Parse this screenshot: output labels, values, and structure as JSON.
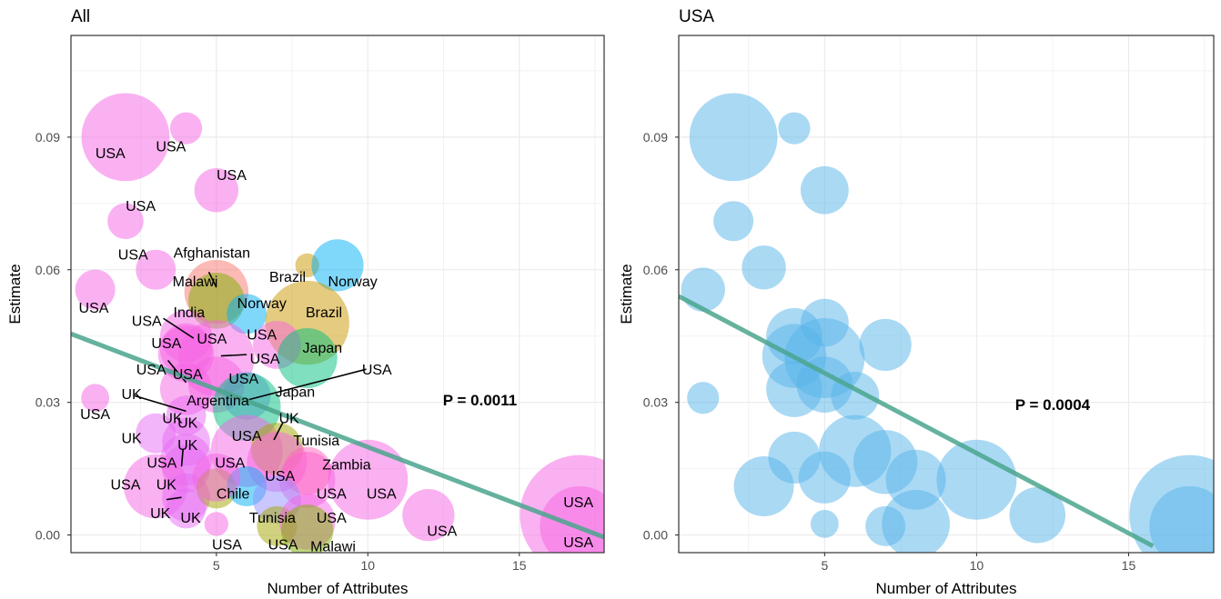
{
  "chart_data": [
    {
      "type": "scatter",
      "title": "All",
      "xlabel": "Number of Attributes",
      "ylabel": "Estimate",
      "xlim": [
        0.2,
        17.8
      ],
      "ylim": [
        -0.004,
        0.113
      ],
      "xticks": [
        5,
        10,
        15
      ],
      "yticks": [
        0.0,
        0.03,
        0.06,
        0.09
      ],
      "ytick_labels": [
        "0.00",
        "0.03",
        "0.06",
        "0.09"
      ],
      "annotation": "P = 0.0011",
      "annotation_pos": [
        13.7,
        0.0305
      ],
      "trend": {
        "x": [
          0.2,
          17.8
        ],
        "y": [
          0.0455,
          -0.0005
        ],
        "color": "#4aa58d"
      },
      "colors": {
        "USA": "#f564e3",
        "UK": "#e76bf3",
        "Afghanistan": "#f8766d",
        "Malawi": "#7cae00",
        "Brazil": "#c99800",
        "Norway": "#00b0f6",
        "India": "#f564e3",
        "Japan": "#00bf7d",
        "Argentina": "#9590ff",
        "Tunisia": "#a3a500",
        "Zambia": "#ff62bc",
        "Chile": "#a3a500"
      },
      "points": [
        {
          "country": "USA",
          "x": 2,
          "y": 0.09,
          "size": 2.2
        },
        {
          "country": "USA",
          "x": 4,
          "y": 0.092,
          "size": 0.8
        },
        {
          "country": "USA",
          "x": 5,
          "y": 0.078,
          "size": 1.1
        },
        {
          "country": "USA",
          "x": 2,
          "y": 0.071,
          "size": 0.9
        },
        {
          "country": "USA",
          "x": 3,
          "y": 0.06,
          "size": 1.0
        },
        {
          "country": "USA",
          "x": 1,
          "y": 0.0555,
          "size": 1.0
        },
        {
          "country": "Afghanistan",
          "x": 5,
          "y": 0.055,
          "size": 1.6
        },
        {
          "country": "Malawi",
          "x": 5,
          "y": 0.053,
          "size": 1.4
        },
        {
          "country": "Brazil",
          "x": 8,
          "y": 0.061,
          "size": 0.6
        },
        {
          "country": "Norway",
          "x": 9,
          "y": 0.061,
          "size": 1.3
        },
        {
          "country": "Norway",
          "x": 6,
          "y": 0.05,
          "size": 1.0
        },
        {
          "country": "Brazil",
          "x": 8,
          "y": 0.048,
          "size": 2.1
        },
        {
          "country": "India",
          "x": 4,
          "y": 0.045,
          "size": 1.3
        },
        {
          "country": "USA",
          "x": 4,
          "y": 0.042,
          "size": 1.3
        },
        {
          "country": "USA",
          "x": 5,
          "y": 0.04,
          "size": 1.9
        },
        {
          "country": "USA",
          "x": 4,
          "y": 0.041,
          "size": 1.4
        },
        {
          "country": "USA",
          "x": 7,
          "y": 0.043,
          "size": 1.2
        },
        {
          "country": "Japan",
          "x": 8,
          "y": 0.04,
          "size": 1.5
        },
        {
          "country": "USA",
          "x": 5,
          "y": 0.034,
          "size": 1.4
        },
        {
          "country": "USA",
          "x": 4,
          "y": 0.033,
          "size": 1.3
        },
        {
          "country": "USA",
          "x": 1,
          "y": 0.031,
          "size": 0.7
        },
        {
          "country": "Argentina",
          "x": 6,
          "y": 0.0315,
          "size": 1.2
        },
        {
          "country": "Japan",
          "x": 6,
          "y": 0.029,
          "size": 1.7
        },
        {
          "country": "UK",
          "x": 4,
          "y": 0.027,
          "size": 1.0
        },
        {
          "country": "UK",
          "x": 3,
          "y": 0.023,
          "size": 1.0
        },
        {
          "country": "UK",
          "x": 4,
          "y": 0.021,
          "size": 1.2
        },
        {
          "country": "UK",
          "x": 4,
          "y": 0.017,
          "size": 1.3
        },
        {
          "country": "USA",
          "x": 6,
          "y": 0.019,
          "size": 1.8
        },
        {
          "country": "Tunisia",
          "x": 7,
          "y": 0.0195,
          "size": 1.3
        },
        {
          "country": "UK",
          "x": 4,
          "y": 0.015,
          "size": 1.2
        },
        {
          "country": "USA",
          "x": 7,
          "y": 0.0165,
          "size": 1.5
        },
        {
          "country": "USA",
          "x": 8,
          "y": 0.0125,
          "size": 1.4
        },
        {
          "country": "Zambia",
          "x": 8,
          "y": 0.0145,
          "size": 1.2
        },
        {
          "country": "USA",
          "x": 10,
          "y": 0.0125,
          "size": 2.0
        },
        {
          "country": "USA",
          "x": 3,
          "y": 0.011,
          "size": 1.6
        },
        {
          "country": "UK",
          "x": 4,
          "y": 0.0085,
          "size": 1.2
        },
        {
          "country": "Chile",
          "x": 5,
          "y": 0.0105,
          "size": 1.0
        },
        {
          "country": "Norway",
          "x": 6,
          "y": 0.011,
          "size": 1.0
        },
        {
          "country": "USA",
          "x": 5,
          "y": 0.013,
          "size": 1.2
        },
        {
          "country": "Argentina",
          "x": 7,
          "y": 0.008,
          "size": 1.2
        },
        {
          "country": "UK",
          "x": 4,
          "y": 0.006,
          "size": 1.0
        },
        {
          "country": "USA",
          "x": 12,
          "y": 0.0045,
          "size": 1.3
        },
        {
          "country": "USA",
          "x": 5,
          "y": 0.0025,
          "size": 0.6
        },
        {
          "country": "Tunisia",
          "x": 7,
          "y": 0.002,
          "size": 1.0
        },
        {
          "country": "USA",
          "x": 8,
          "y": 0.003,
          "size": 1.4
        },
        {
          "country": "Malawi",
          "x": 8,
          "y": 0.001,
          "size": 1.3
        },
        {
          "country": "USA",
          "x": 17,
          "y": 0.0045,
          "size": 3.0
        },
        {
          "country": "USA",
          "x": 17,
          "y": 0.002,
          "size": 2.0
        }
      ],
      "labels": [
        {
          "text": "USA",
          "x": 1.5,
          "y": 0.0865
        },
        {
          "text": "USA",
          "x": 3.5,
          "y": 0.088
        },
        {
          "text": "USA",
          "x": 5.5,
          "y": 0.0815
        },
        {
          "text": "USA",
          "x": 2.5,
          "y": 0.0745
        },
        {
          "text": "USA",
          "x": 2.25,
          "y": 0.0635
        },
        {
          "text": "Afghanistan",
          "x": 4.85,
          "y": 0.064
        },
        {
          "text": "Malawi",
          "x": 4.3,
          "y": 0.0575
        },
        {
          "text": "Brazil",
          "x": 7.35,
          "y": 0.0585
        },
        {
          "text": "Norway",
          "x": 9.5,
          "y": 0.0575
        },
        {
          "text": "USA",
          "x": 0.95,
          "y": 0.0515
        },
        {
          "text": "Norway",
          "x": 6.5,
          "y": 0.0525
        },
        {
          "text": "India",
          "x": 4.1,
          "y": 0.0505
        },
        {
          "text": "Brazil",
          "x": 8.55,
          "y": 0.0505
        },
        {
          "text": "USA",
          "x": 2.7,
          "y": 0.0485
        },
        {
          "text": "USA",
          "x": 6.5,
          "y": 0.0455
        },
        {
          "text": "USA",
          "x": 3.35,
          "y": 0.0435
        },
        {
          "text": "USA",
          "x": 4.85,
          "y": 0.0445
        },
        {
          "text": "Japan",
          "x": 8.5,
          "y": 0.0425
        },
        {
          "text": "USA",
          "x": 6.6,
          "y": 0.04
        },
        {
          "text": "USA",
          "x": 2.85,
          "y": 0.0375
        },
        {
          "text": "USA",
          "x": 4.05,
          "y": 0.0365
        },
        {
          "text": "USA",
          "x": 10.3,
          "y": 0.0375
        },
        {
          "text": "USA",
          "x": 5.9,
          "y": 0.0355
        },
        {
          "text": "UK",
          "x": 2.2,
          "y": 0.032
        },
        {
          "text": "Japan",
          "x": 7.6,
          "y": 0.0325
        },
        {
          "text": "Argentina",
          "x": 5.05,
          "y": 0.0305
        },
        {
          "text": "USA",
          "x": 1.0,
          "y": 0.0275
        },
        {
          "text": "UK",
          "x": 7.4,
          "y": 0.0265
        },
        {
          "text": "UK",
          "x": 3.55,
          "y": 0.0265
        },
        {
          "text": "UK",
          "x": 4.05,
          "y": 0.0255
        },
        {
          "text": "UK",
          "x": 2.2,
          "y": 0.022
        },
        {
          "text": "USA",
          "x": 6.0,
          "y": 0.0225
        },
        {
          "text": "Tunisia",
          "x": 8.3,
          "y": 0.0215
        },
        {
          "text": "UK",
          "x": 4.05,
          "y": 0.0205
        },
        {
          "text": "USA",
          "x": 3.2,
          "y": 0.0165
        },
        {
          "text": "USA",
          "x": 5.45,
          "y": 0.0165
        },
        {
          "text": "Zambia",
          "x": 9.3,
          "y": 0.016
        },
        {
          "text": "USA",
          "x": 7.1,
          "y": 0.0135
        },
        {
          "text": "USA",
          "x": 2.0,
          "y": 0.0115
        },
        {
          "text": "UK",
          "x": 3.35,
          "y": 0.0115
        },
        {
          "text": "Chile",
          "x": 5.55,
          "y": 0.0095
        },
        {
          "text": "USA",
          "x": 8.8,
          "y": 0.0095
        },
        {
          "text": "USA",
          "x": 10.45,
          "y": 0.0095
        },
        {
          "text": "UK",
          "x": 3.15,
          "y": 0.005
        },
        {
          "text": "UK",
          "x": 4.15,
          "y": 0.004
        },
        {
          "text": "Tunisia",
          "x": 6.85,
          "y": 0.004
        },
        {
          "text": "USA",
          "x": 8.8,
          "y": 0.004
        },
        {
          "text": "USA",
          "x": 12.45,
          "y": 0.001
        },
        {
          "text": "USA",
          "x": 16.95,
          "y": 0.0075
        },
        {
          "text": "USA",
          "x": 5.35,
          "y": -0.002
        },
        {
          "text": "USA",
          "x": 7.2,
          "y": -0.002
        },
        {
          "text": "Malawi",
          "x": 8.85,
          "y": -0.0025
        },
        {
          "text": "USA",
          "x": 16.95,
          "y": -0.0015
        }
      ],
      "leaders": [
        [
          3.25,
          0.049,
          4.25,
          0.0445
        ],
        [
          4.75,
          0.0595,
          5.0,
          0.056
        ],
        [
          5.15,
          0.0405,
          6.0,
          0.0408
        ],
        [
          3.4,
          0.0395,
          4.0,
          0.0345
        ],
        [
          2.3,
          0.0315,
          4.0,
          0.028
        ],
        [
          9.95,
          0.0375,
          6.0,
          0.0305
        ],
        [
          7.2,
          0.0255,
          6.9,
          0.0215
        ],
        [
          3.9,
          0.0195,
          3.85,
          0.0155
        ],
        [
          3.35,
          0.008,
          3.85,
          0.0085
        ]
      ]
    },
    {
      "type": "scatter",
      "title": "USA",
      "xlabel": "Number of Attributes",
      "ylabel": "Estimate",
      "xlim": [
        0.2,
        17.8
      ],
      "ylim": [
        -0.004,
        0.113
      ],
      "xticks": [
        5,
        10,
        15
      ],
      "yticks": [
        0.0,
        0.03,
        0.06,
        0.09
      ],
      "ytick_labels": [
        "0.00",
        "0.03",
        "0.06",
        "0.09"
      ],
      "annotation": "P = 0.0004",
      "annotation_pos": [
        12.5,
        0.0295
      ],
      "trend": {
        "x": [
          0.2,
          15.8
        ],
        "y": [
          0.054,
          -0.0025
        ],
        "color": "#4aa58d"
      },
      "point_color": "#56b4e9",
      "points": [
        {
          "x": 2,
          "y": 0.09,
          "size": 2.2
        },
        {
          "x": 4,
          "y": 0.092,
          "size": 0.8
        },
        {
          "x": 5,
          "y": 0.078,
          "size": 1.2
        },
        {
          "x": 2,
          "y": 0.071,
          "size": 1.0
        },
        {
          "x": 3,
          "y": 0.0605,
          "size": 1.1
        },
        {
          "x": 1,
          "y": 0.0555,
          "size": 1.1
        },
        {
          "x": 5,
          "y": 0.048,
          "size": 1.2
        },
        {
          "x": 4,
          "y": 0.045,
          "size": 1.4
        },
        {
          "x": 7,
          "y": 0.043,
          "size": 1.3
        },
        {
          "x": 4,
          "y": 0.0405,
          "size": 1.6
        },
        {
          "x": 5,
          "y": 0.04,
          "size": 2.0
        },
        {
          "x": 5,
          "y": 0.034,
          "size": 1.4
        },
        {
          "x": 4,
          "y": 0.033,
          "size": 1.4
        },
        {
          "x": 6,
          "y": 0.0315,
          "size": 1.2
        },
        {
          "x": 1,
          "y": 0.031,
          "size": 0.8
        },
        {
          "x": 6,
          "y": 0.019,
          "size": 1.8
        },
        {
          "x": 4,
          "y": 0.0175,
          "size": 1.3
        },
        {
          "x": 7,
          "y": 0.0165,
          "size": 1.6
        },
        {
          "x": 8,
          "y": 0.0125,
          "size": 1.5
        },
        {
          "x": 10,
          "y": 0.0125,
          "size": 2.0
        },
        {
          "x": 5,
          "y": 0.013,
          "size": 1.3
        },
        {
          "x": 3,
          "y": 0.011,
          "size": 1.5
        },
        {
          "x": 12,
          "y": 0.0045,
          "size": 1.4
        },
        {
          "x": 5,
          "y": 0.0025,
          "size": 0.7
        },
        {
          "x": 7,
          "y": 0.002,
          "size": 1.0
        },
        {
          "x": 8,
          "y": 0.0025,
          "size": 1.7
        },
        {
          "x": 17,
          "y": 0.0045,
          "size": 3.0
        },
        {
          "x": 17,
          "y": 0.002,
          "size": 2.0
        }
      ]
    }
  ]
}
